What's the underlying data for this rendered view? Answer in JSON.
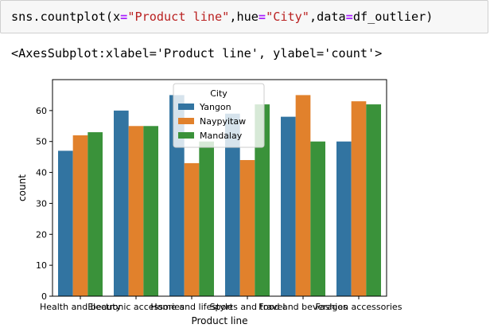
{
  "code_cell": {
    "prefix": "sns.countplot(x",
    "eq1": "=",
    "x_arg": "\"Product line\"",
    "mid1": ",hue",
    "eq2": "=",
    "hue_arg": "\"City\"",
    "mid2": ",data",
    "eq3": "=",
    "suffix": "df_outlier)"
  },
  "output": {
    "repr_text": "<AxesSubplot:xlabel='Product line', ylabel='count'>"
  },
  "chart_data": {
    "type": "bar",
    "xlabel": "Product line",
    "ylabel": "count",
    "ylim": [
      0,
      70
    ],
    "yticks": [
      0,
      10,
      20,
      30,
      40,
      50,
      60
    ],
    "categories": [
      "Health and beauty",
      "Electronic accessories",
      "Home and lifestyle",
      "Sports and travel",
      "Food and beverages",
      "Fashion accessories"
    ],
    "legend": {
      "title": "City",
      "position": "upper-center"
    },
    "series": [
      {
        "name": "Yangon",
        "color": "#3274a1",
        "values": [
          47,
          60,
          65,
          59,
          58,
          50
        ]
      },
      {
        "name": "Naypyitaw",
        "color": "#e1812c",
        "values": [
          52,
          55,
          43,
          44,
          65,
          63
        ]
      },
      {
        "name": "Mandalay",
        "color": "#3a923a",
        "values": [
          53,
          55,
          50,
          62,
          50,
          62
        ]
      }
    ]
  }
}
